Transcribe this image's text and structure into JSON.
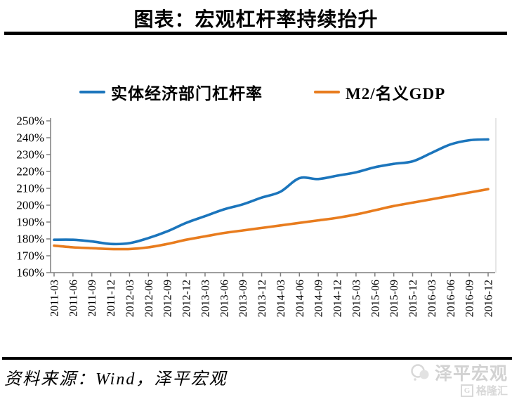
{
  "header": {
    "title": "图表：宏观杠杆率持续抬升"
  },
  "chart_data": {
    "type": "line",
    "categories": [
      "2011-03",
      "2011-06",
      "2011-09",
      "2011-12",
      "2012-03",
      "2012-06",
      "2012-09",
      "2012-12",
      "2013-03",
      "2013-06",
      "2013-09",
      "2013-12",
      "2014-03",
      "2014-06",
      "2014-09",
      "2014-12",
      "2015-03",
      "2015-06",
      "2015-09",
      "2015-12",
      "2016-03",
      "2016-06",
      "2016-09",
      "2016-12"
    ],
    "series": [
      {
        "name": "实体经济部门杠杆率",
        "color": "#1b75bc",
        "values": [
          179.5,
          179.5,
          178.5,
          177,
          177.5,
          180.5,
          184.5,
          189.5,
          193.5,
          197.5,
          200.5,
          204.5,
          208,
          216,
          215.5,
          217.5,
          219.5,
          222.5,
          224.5,
          226,
          231,
          236,
          238.5,
          239
        ]
      },
      {
        "name": "M2/名义GDP",
        "color": "#e87c1e",
        "values": [
          176,
          175,
          174.5,
          174,
          174,
          175,
          177,
          179.5,
          181.5,
          183.5,
          185,
          186.5,
          188,
          189.5,
          191,
          192.5,
          194.5,
          197,
          199.5,
          201.5,
          203.5,
          205.5,
          207.5,
          209.5
        ]
      }
    ],
    "title": "图表：宏观杠杆率持续抬升",
    "xlabel": "",
    "ylabel": "",
    "ylim": [
      160,
      250
    ],
    "y_tick_step": 10,
    "y_tick_suffix": "%",
    "grid": false,
    "legend_position": "top",
    "x_tick_rotation": 90
  },
  "colors": {
    "axis": "#7f7f7f",
    "plot_right_border": "#d9d9d9",
    "divider": "#000000",
    "watermark": "#d2d2d2"
  },
  "footer": {
    "source": "资料来源：Wind，泽平宏观"
  },
  "watermark": {
    "brand": "泽平宏观",
    "sub": "格隆汇"
  }
}
